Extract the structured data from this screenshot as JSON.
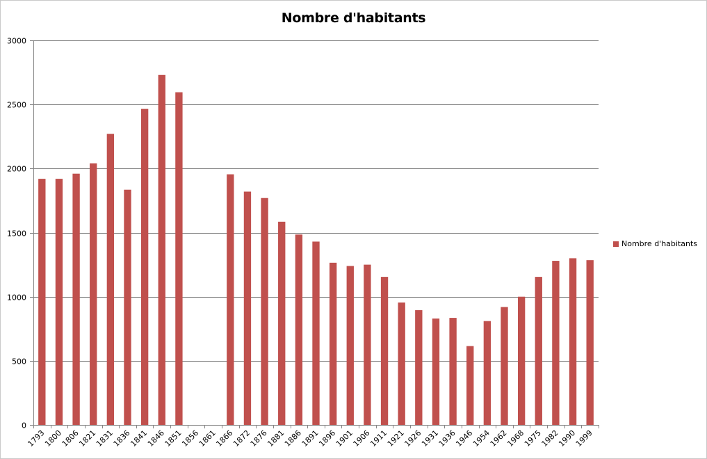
{
  "chart_data": {
    "type": "bar",
    "title": "Nombre d'habitants",
    "xlabel": "",
    "ylabel": "",
    "ylim": [
      0,
      3000
    ],
    "yticks": [
      0,
      500,
      1000,
      1500,
      2000,
      2500,
      3000
    ],
    "grid": true,
    "legend_position": "right",
    "categories": [
      "1793",
      "1800",
      "1806",
      "1821",
      "1831",
      "1836",
      "1841",
      "1846",
      "1851",
      "1856",
      "1861",
      "1866",
      "1872",
      "1876",
      "1881",
      "1886",
      "1891",
      "1896",
      "1901",
      "1906",
      "1911",
      "1921",
      "1926",
      "1931",
      "1936",
      "1946",
      "1954",
      "1962",
      "1968",
      "1975",
      "1982",
      "1990",
      "1999"
    ],
    "series": [
      {
        "name": "Nombre d'habitants",
        "color": "#c0504d",
        "values": [
          1920,
          1920,
          1960,
          2040,
          2270,
          1835,
          2465,
          2730,
          2595,
          null,
          null,
          1955,
          1820,
          1770,
          1585,
          1485,
          1430,
          1265,
          1240,
          1250,
          1155,
          955,
          895,
          830,
          835,
          615,
          810,
          920,
          1000,
          1155,
          1280,
          1300,
          1285
        ]
      }
    ]
  }
}
